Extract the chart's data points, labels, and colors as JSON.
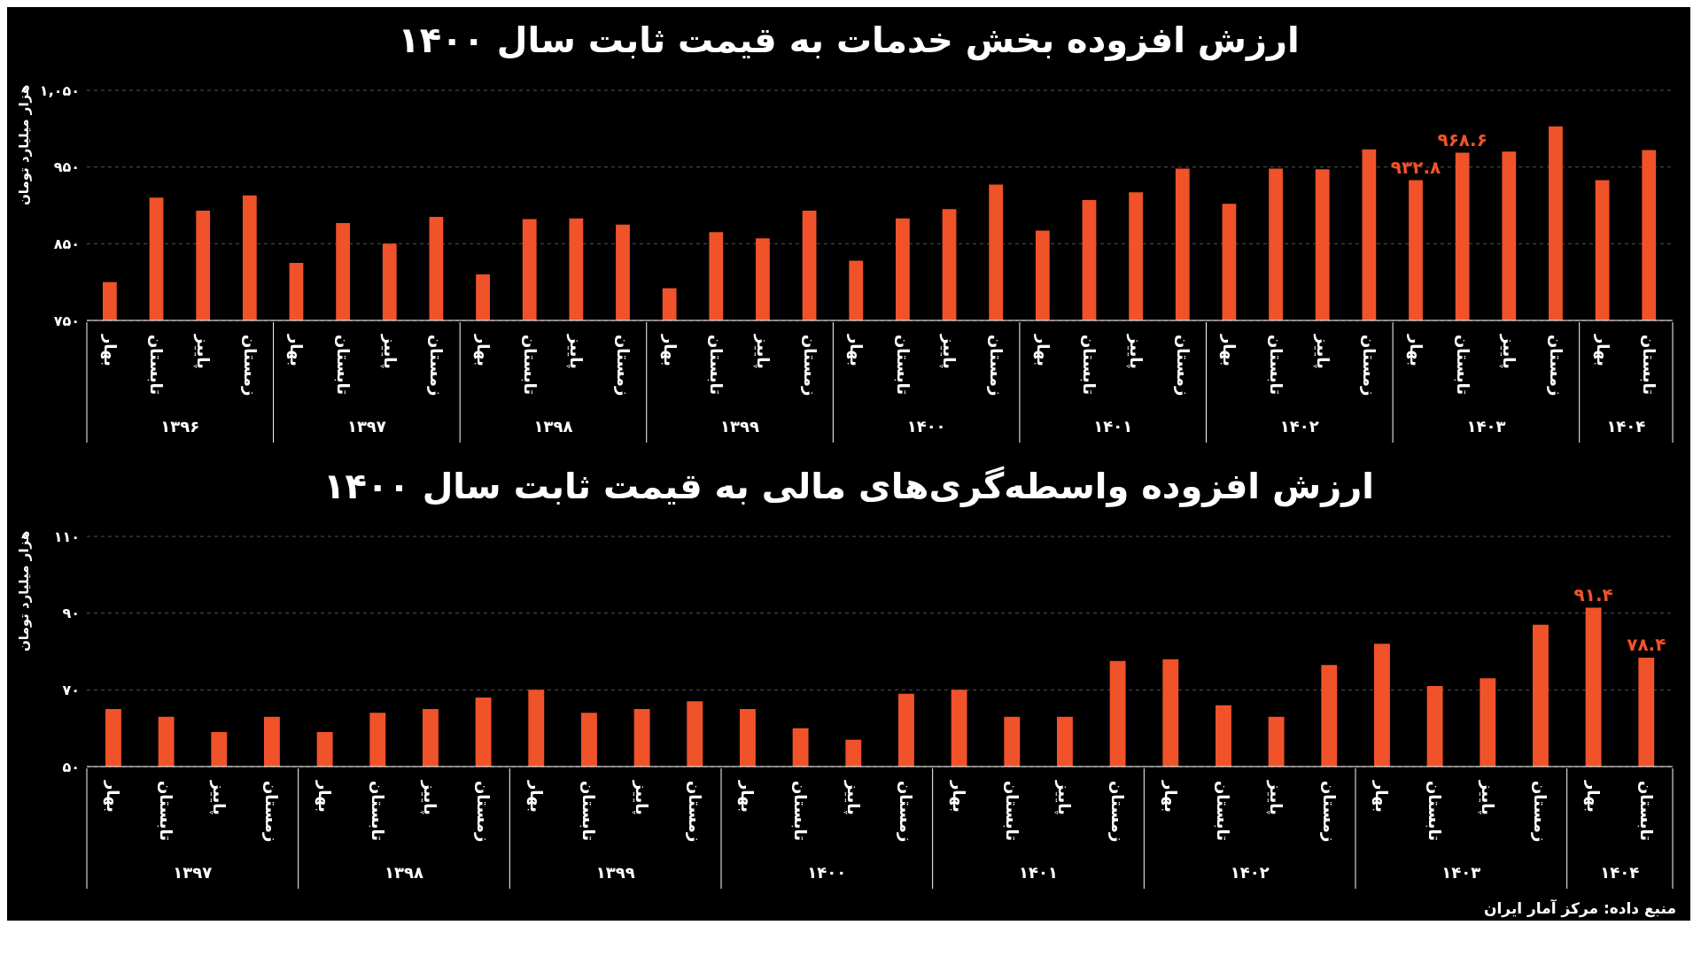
{
  "chart_data": [
    {
      "type": "bar",
      "title": "ارزش افزوده بخش خدمات به قیمت ثابت سال ۱۴۰۰",
      "ylabel": "هزار میلیارد تومان",
      "color": "#f0522a",
      "categories": [
        "بهار",
        "تابستان",
        "پاییز",
        "زمستان",
        "بهار",
        "تابستان",
        "پاییز",
        "زمستان",
        "بهار",
        "تابستان",
        "پاییز",
        "زمستان",
        "بهار",
        "تابستان",
        "پاییز",
        "زمستان",
        "بهار",
        "تابستان",
        "پاییز",
        "زمستان",
        "بهار",
        "تابستان",
        "پاییز",
        "زمستان",
        "بهار",
        "تابستان",
        "پاییز",
        "زمستان",
        "بهار",
        "تابستان",
        "پاییز",
        "زمستان",
        "بهار",
        "تابستان"
      ],
      "values": [
        800,
        910,
        893,
        913,
        825,
        877,
        850,
        885,
        810,
        882,
        883,
        875,
        792,
        865,
        857,
        893,
        828,
        883,
        895,
        927,
        867,
        907,
        917,
        948,
        902,
        948,
        947,
        973,
        932.8,
        968.6,
        970,
        1003,
        933,
        972
      ],
      "value_labels": [
        null,
        null,
        null,
        null,
        null,
        null,
        null,
        null,
        null,
        null,
        null,
        null,
        null,
        null,
        null,
        null,
        null,
        null,
        null,
        null,
        null,
        null,
        null,
        null,
        null,
        null,
        null,
        null,
        "۹۳۲.۸",
        "۹۶۸.۶",
        null,
        null,
        null,
        null
      ],
      "ylim": [
        750,
        1050
      ],
      "yticks": [
        {
          "value": 750,
          "label": "۷۵۰"
        },
        {
          "value": 850,
          "label": "۸۵۰"
        },
        {
          "value": 950,
          "label": "۹۵۰"
        },
        {
          "value": 1050,
          "label": "۱,۰۵۰"
        }
      ],
      "grid": "y",
      "annotations": [
        "۱۳۹۶",
        "۱۳۹۷",
        "۱۳۹۸",
        "۱۳۹۹",
        "۱۴۰۰",
        "۱۴۰۱",
        "۱۴۰۲",
        "۱۴۰۳",
        "۱۴۰۴"
      ]
    },
    {
      "type": "bar",
      "title": "ارزش افزوده واسطه‌گری‌های مالی به قیمت ثابت سال ۱۴۰۰",
      "ylabel": "هزار میلیارد تومان",
      "color": "#f0522a",
      "categories": [
        "بهار",
        "تابستان",
        "پاییز",
        "زمستان",
        "بهار",
        "تابستان",
        "پاییز",
        "زمستان",
        "بهار",
        "تابستان",
        "پاییز",
        "زمستان",
        "بهار",
        "تابستان",
        "پاییز",
        "زمستان",
        "بهار",
        "تابستان",
        "پاییز",
        "زمستان",
        "بهار",
        "تابستان",
        "پاییز",
        "زمستان",
        "بهار",
        "تابستان",
        "پاییز",
        "زمستان",
        "بهار",
        "تابستان"
      ],
      "values": [
        65,
        63,
        59,
        63,
        59,
        64,
        65,
        68,
        70,
        64,
        65,
        67,
        65,
        60,
        57,
        69,
        70,
        63,
        63,
        77.5,
        78,
        66,
        63,
        76.5,
        82,
        71,
        73,
        87,
        91.4,
        78.4
      ],
      "value_labels": [
        null,
        null,
        null,
        null,
        null,
        null,
        null,
        null,
        null,
        null,
        null,
        null,
        null,
        null,
        null,
        null,
        null,
        null,
        null,
        null,
        null,
        null,
        null,
        null,
        null,
        null,
        null,
        null,
        "۹۱.۴",
        "۷۸.۴"
      ],
      "ylim": [
        50,
        110
      ],
      "yticks": [
        {
          "value": 50,
          "label": "۵۰"
        },
        {
          "value": 70,
          "label": "۷۰"
        },
        {
          "value": 90,
          "label": "۹۰"
        },
        {
          "value": 110,
          "label": "۱۱۰"
        }
      ],
      "grid": "y",
      "annotations": [
        "۱۳۹۷",
        "۱۳۹۸",
        "۱۳۹۹",
        "۱۴۰۰",
        "۱۴۰۱",
        "۱۴۰۲",
        "۱۴۰۳",
        "۱۴۰۴",
        "منبع داده: مرکز آمار ایران"
      ]
    }
  ]
}
